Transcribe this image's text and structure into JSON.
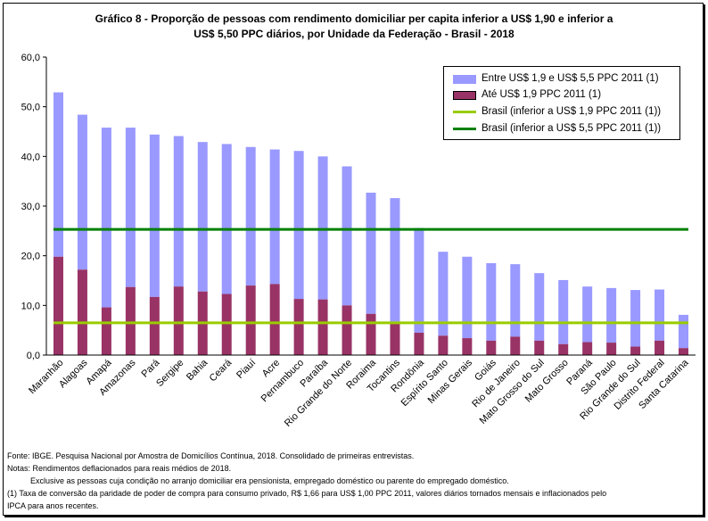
{
  "title": {
    "line1": "Gráfico 8 - Proporção de pessoas com rendimento domiciliar per capita inferior a US$ 1,90 e inferior a",
    "line2": "US$ 5,50 PPC diários, por Unidade da Federação - Brasil - 2018"
  },
  "colors": {
    "upper_bar": "#9999ff",
    "lower_bar": "#993366",
    "line_19": "#99cc00",
    "line_55": "#008000"
  },
  "chart_data": {
    "type": "bar",
    "stacked": true,
    "categories": [
      "Maranhão",
      "Alagoas",
      "Amapá",
      "Amazonas",
      "Pará",
      "Sergipe",
      "Bahia",
      "Ceará",
      "Piauí",
      "Acre",
      "Pernambuco",
      "Paraíba",
      "Rio Grande do Norte",
      "Roraima",
      "Tocantins",
      "Rondônia",
      "Espírito Santo",
      "Minas Gerais",
      "Goiás",
      "Rio de Janeiro",
      "Mato Grosso do Sul",
      "Mato Grosso",
      "Paraná",
      "São Paulo",
      "Rio Grande do Sul",
      "Distrito Federal",
      "Santa Catarina"
    ],
    "series": [
      {
        "name": "Até US$ 1,9 PPC 2011 (1)",
        "values": [
          19.8,
          17.2,
          9.6,
          13.7,
          11.7,
          13.8,
          12.8,
          12.3,
          14.0,
          14.3,
          11.3,
          11.2,
          10.0,
          8.3,
          6.3,
          4.5,
          3.9,
          3.4,
          2.9,
          3.7,
          2.9,
          2.2,
          2.6,
          2.5,
          1.7,
          2.9,
          1.4
        ]
      },
      {
        "name": "Entre US$ 1,9 e US$ 5,5 PPC 2011 (1)",
        "values": [
          33.1,
          31.2,
          36.2,
          32.1,
          32.7,
          30.3,
          30.1,
          30.2,
          27.9,
          27.1,
          29.8,
          28.8,
          28.0,
          24.4,
          25.3,
          21.1,
          16.9,
          16.4,
          15.6,
          14.6,
          13.6,
          12.9,
          11.2,
          11.0,
          11.4,
          10.3,
          6.7
        ]
      }
    ],
    "reference_lines": [
      {
        "name": "Brasil (inferior a US$ 1,9 PPC 2011 (1))",
        "value": 6.5
      },
      {
        "name": "Brasil (inferior a US$ 5,5 PPC 2011 (1))",
        "value": 25.3
      }
    ],
    "ylim": [
      0,
      60
    ],
    "yticks": [
      "0,0",
      "10,0",
      "20,0",
      "30,0",
      "40,0",
      "50,0",
      "60,0"
    ],
    "legend_position": "top-right",
    "grid": false
  },
  "legend": {
    "items": [
      "Entre US$ 1,9 e US$ 5,5 PPC 2011 (1)",
      "Até US$ 1,9 PPC 2011 (1)",
      "Brasil (inferior a US$ 1,9 PPC 2011 (1))",
      "Brasil (inferior a US$ 5,5 PPC 2011 (1))"
    ]
  },
  "notes": {
    "source": "Fonte: IBGE. Pesquisa Nacional por Amostra de Domicílios Contínua, 2018. Consolidado de primeiras entrevistas.",
    "note1": "Notas: Rendimentos deflacionados para reais médios de 2018.",
    "note2": "Exclusive as pessoas cuja condição no arranjo domiciliar era pensionista, empregado doméstico ou parente do empregado doméstico.",
    "note3": "(1) Taxa de conversão da paridade de poder de compra para consumo privado, R$ 1,66 para US$ 1,00 PPC 2011, valores diários tornados mensais e inflacionados pelo",
    "note4": "IPCA para anos recentes."
  }
}
